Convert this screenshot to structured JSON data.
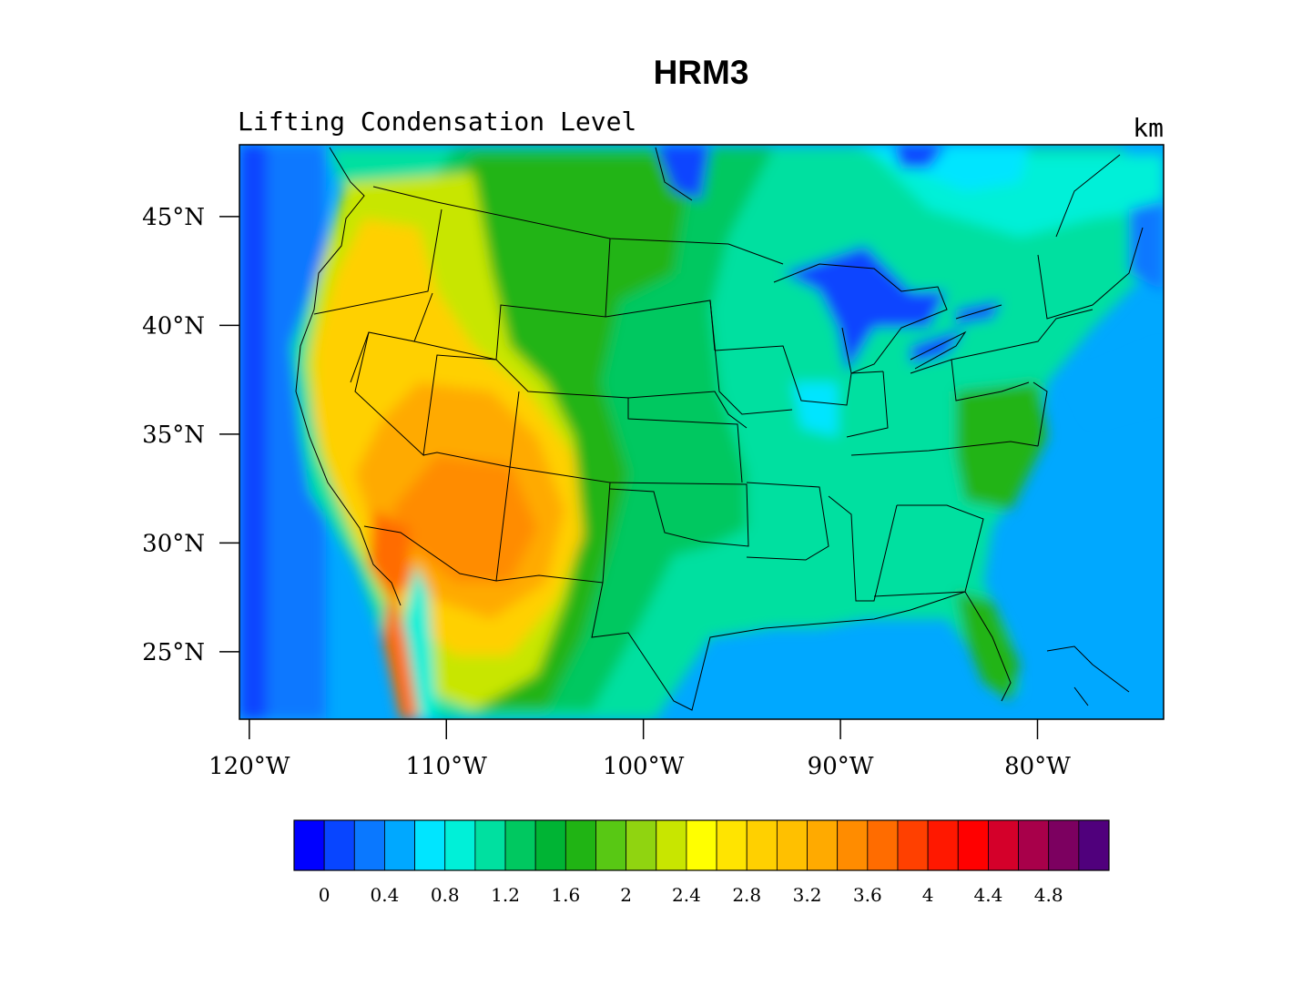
{
  "title": "HRM3",
  "subtitle_left": "Lifting Condensation Level",
  "subtitle_right": "km",
  "lat_ticks": [
    {
      "value": 45,
      "label": "45°N"
    },
    {
      "value": 40,
      "label": "40°N"
    },
    {
      "value": 35,
      "label": "35°N"
    },
    {
      "value": 30,
      "label": "30°N"
    },
    {
      "value": 25,
      "label": "25°N"
    }
  ],
  "lon_ticks": [
    {
      "value": -120,
      "label": "120°W"
    },
    {
      "value": -110,
      "label": "110°W"
    },
    {
      "value": -100,
      "label": "100°W"
    },
    {
      "value": -90,
      "label": "90°W"
    },
    {
      "value": -80,
      "label": "80°W"
    }
  ],
  "colorbar": {
    "colors": [
      "#0000ff",
      "#0845ff",
      "#0a78ff",
      "#00a8ff",
      "#00e5ff",
      "#00f0d8",
      "#00e0a0",
      "#00c860",
      "#00b434",
      "#20b414",
      "#58c814",
      "#90d410",
      "#c8e600",
      "#ffff00",
      "#ffe400",
      "#ffd000",
      "#ffc000",
      "#ffaa00",
      "#ff8c00",
      "#ff6c00",
      "#ff4000",
      "#ff1800",
      "#ff0000",
      "#d4002a",
      "#a8004a",
      "#7c0060",
      "#50007c"
    ],
    "labels": [
      "0",
      "0.4",
      "0.8",
      "1.2",
      "1.6",
      "2",
      "2.4",
      "2.8",
      "3.2",
      "3.6",
      "4",
      "4.4",
      "4.8"
    ]
  },
  "map": {
    "lon_range": [
      -120.5,
      -73.6
    ],
    "lat_range": [
      21.9,
      48.3
    ],
    "field": "Lifting Condensation Level",
    "units": "km",
    "regions": {
      "ocean": "#00a8ff",
      "deep_ocean": "#0a78ff",
      "pacific_far": "#0845ff",
      "great_lakes": "#0845ff",
      "east_lowland": "#00e0a0",
      "plains": "#00c860",
      "high_plains": "#20b414",
      "rockies": "#58c814",
      "mountain_west": "#c8e600",
      "southwest": "#ffd000",
      "desert_core": "#ff8c00",
      "hot_core": "#ff6c00",
      "gulf_coast": "#00f0d8",
      "florida": "#20b414"
    }
  }
}
